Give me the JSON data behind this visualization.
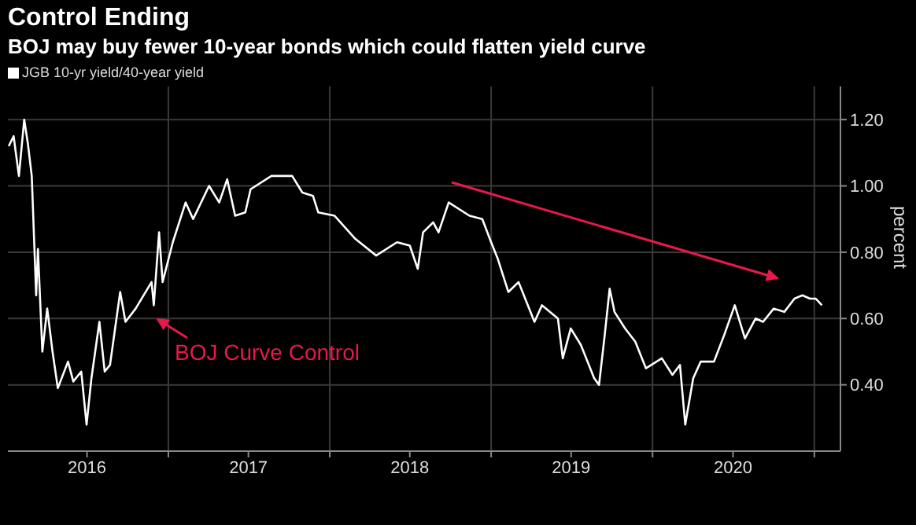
{
  "chart_data": {
    "type": "line",
    "title": "Control Ending",
    "subtitle": "BOJ may buy fewer 10-year bonds which could flatten yield curve",
    "ylabel": "percent",
    "x": [
      "2016-01-06",
      "2016-01-17",
      "2016-01-29",
      "2016-02-10",
      "2016-02-18",
      "2016-02-27",
      "2016-03-08",
      "2016-03-12",
      "2016-03-22",
      "2016-04-02",
      "2016-04-14",
      "2016-04-26",
      "2016-05-19",
      "2016-05-31",
      "2016-06-18",
      "2016-06-30",
      "2016-07-11",
      "2016-07-29",
      "2016-08-10",
      "2016-08-22",
      "2016-09-14",
      "2016-09-26",
      "2016-10-19",
      "2016-11-24",
      "2016-11-29",
      "2016-12-11",
      "2016-12-19",
      "2017-01-11",
      "2017-02-09",
      "2017-02-26",
      "2017-04-03",
      "2017-04-26",
      "2017-05-14",
      "2017-06-01",
      "2017-06-24",
      "2017-07-06",
      "2017-08-22",
      "2017-10-08",
      "2017-10-31",
      "2017-11-24",
      "2017-12-06",
      "2018-01-12",
      "2018-02-28",
      "2018-04-16",
      "2018-06-02",
      "2018-07-01",
      "2018-07-19",
      "2018-07-31",
      "2018-08-23",
      "2018-09-04",
      "2018-09-27",
      "2018-11-13",
      "2018-12-12",
      "2019-01-01",
      "2019-01-16",
      "2019-02-09",
      "2019-03-04",
      "2019-03-22",
      "2019-04-09",
      "2019-04-26",
      "2019-06-01",
      "2019-06-12",
      "2019-06-30",
      "2019-07-23",
      "2019-08-22",
      "2019-09-02",
      "2019-09-14",
      "2019-09-26",
      "2019-10-07",
      "2019-10-31",
      "2019-11-23",
      "2019-12-17",
      "2020-01-22",
      "2020-02-15",
      "2020-03-03",
      "2020-03-15",
      "2020-04-02",
      "2020-04-19",
      "2020-05-19",
      "2020-06-11",
      "2020-07-05",
      "2020-07-28",
      "2020-08-21",
      "2020-09-07",
      "2020-10-01",
      "2020-10-25",
      "2020-11-17",
      "2020-12-05",
      "2020-12-22",
      "2021-01-04",
      "2021-01-18"
    ],
    "series": [
      {
        "name": "JGB 10-yr yield/40-year yield",
        "color": "#ffffff",
        "values": [
          1.12,
          1.15,
          1.03,
          1.2,
          1.13,
          1.03,
          0.67,
          0.81,
          0.5,
          0.63,
          0.5,
          0.39,
          0.47,
          0.41,
          0.44,
          0.28,
          0.42,
          0.59,
          0.44,
          0.46,
          0.68,
          0.59,
          0.63,
          0.71,
          0.64,
          0.86,
          0.71,
          0.83,
          0.95,
          0.9,
          1.0,
          0.95,
          1.02,
          0.91,
          0.92,
          0.99,
          1.03,
          1.03,
          0.98,
          0.97,
          0.92,
          0.91,
          0.84,
          0.79,
          0.83,
          0.82,
          0.75,
          0.86,
          0.89,
          0.86,
          0.95,
          0.91,
          0.9,
          0.83,
          0.78,
          0.68,
          0.71,
          0.65,
          0.59,
          0.64,
          0.6,
          0.48,
          0.57,
          0.52,
          0.42,
          0.4,
          0.54,
          0.69,
          0.62,
          0.57,
          0.53,
          0.45,
          0.48,
          0.43,
          0.46,
          0.28,
          0.42,
          0.47,
          0.47,
          0.55,
          0.64,
          0.54,
          0.6,
          0.59,
          0.63,
          0.62,
          0.66,
          0.67,
          0.66,
          0.66,
          0.64
        ]
      }
    ],
    "xlim": [
      "2016-01-04",
      "2021-03-01"
    ],
    "xticks": [
      {
        "value": "2016-07-01",
        "label": "2016"
      },
      {
        "value": "2017-01-01",
        "label": null
      },
      {
        "value": "2017-07-01",
        "label": "2017"
      },
      {
        "value": "2018-01-01",
        "label": null
      },
      {
        "value": "2018-07-01",
        "label": "2018"
      },
      {
        "value": "2019-01-01",
        "label": null
      },
      {
        "value": "2019-07-01",
        "label": "2019"
      },
      {
        "value": "2020-01-01",
        "label": null
      },
      {
        "value": "2020-07-01",
        "label": "2020"
      },
      {
        "value": "2021-01-01",
        "label": null
      }
    ],
    "ylim": [
      0.2,
      1.3
    ],
    "yticks": [
      {
        "value": 0.4,
        "label": "0.40"
      },
      {
        "value": 0.6,
        "label": "0.60"
      },
      {
        "value": 0.8,
        "label": "0.80"
      },
      {
        "value": 1.0,
        "label": "1.00"
      },
      {
        "value": 1.2,
        "label": "1.20"
      }
    ],
    "annotations": [
      "BOJ Curve Control"
    ],
    "grid": true,
    "legend": "top left",
    "marker": "none",
    "line_style": "solid"
  }
}
